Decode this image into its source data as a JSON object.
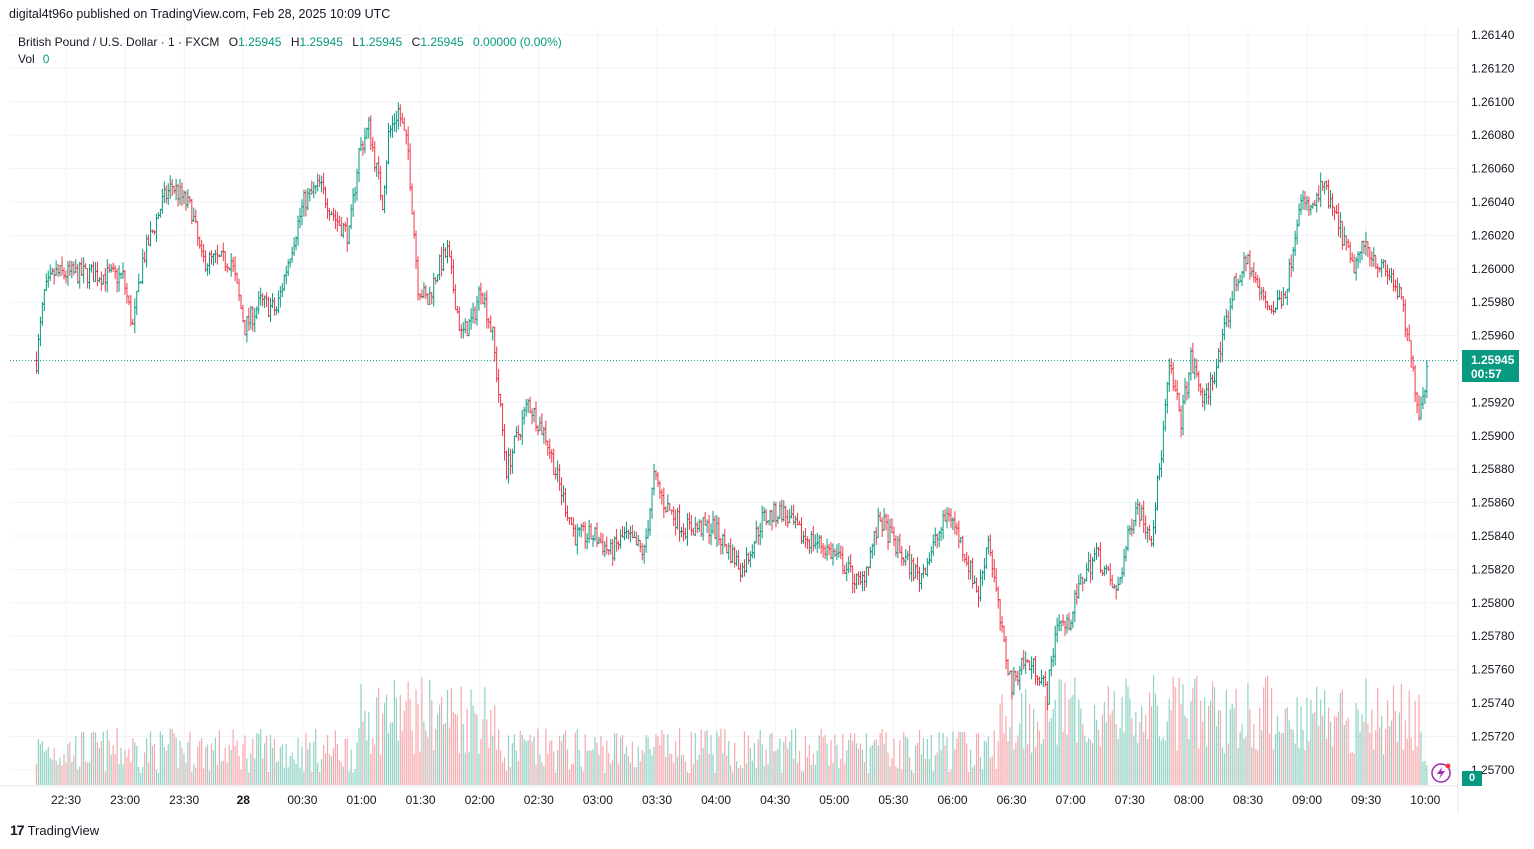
{
  "header": {
    "publisher": "digital4t96o published on TradingView.com, Feb 28, 2025 10:09 UTC"
  },
  "legend": {
    "symbol": "British Pound / U.S. Dollar · 1 · FXCM",
    "open_label": "O",
    "open": "1.25945",
    "high_label": "H",
    "high": "1.25945",
    "low_label": "L",
    "low": "1.25945",
    "close_label": "C",
    "close": "1.25945",
    "change": "0.00000 (0.00%)",
    "vol_label": "Vol",
    "vol_value": "0"
  },
  "price_tag": {
    "price": "1.25945",
    "countdown": "00:57"
  },
  "volume_badge": "0",
  "branding": {
    "logo_icon": "tradingview-logo-icon",
    "name": "TradingView"
  },
  "colors": {
    "up": "#089981",
    "down": "#f23645",
    "grid": "#f0f3fa",
    "text": "#131722"
  },
  "chart_data": {
    "type": "candlestick",
    "title": "British Pound / U.S. Dollar · 1 · FXCM",
    "interval": "1 minute",
    "y_ticks": [
      "1.26140",
      "1.26120",
      "1.26100",
      "1.26080",
      "1.26060",
      "1.26040",
      "1.26020",
      "1.26000",
      "1.25980",
      "1.25960",
      "1.25920",
      "1.25900",
      "1.25880",
      "1.25860",
      "1.25840",
      "1.25820",
      "1.25800",
      "1.25780",
      "1.25760",
      "1.25740",
      "1.25720",
      "1.25700"
    ],
    "x_ticks": [
      "22:30",
      "23:00",
      "23:30",
      "28",
      "00:30",
      "01:00",
      "01:30",
      "02:00",
      "02:30",
      "03:00",
      "03:30",
      "04:00",
      "04:30",
      "05:00",
      "05:30",
      "06:00",
      "06:30",
      "07:00",
      "07:30",
      "08:00",
      "08:30",
      "09:00",
      "09:30",
      "10:00"
    ],
    "ylim": [
      1.2569,
      1.2615
    ],
    "last_price": 1.25945,
    "price_path_keypoints": [
      {
        "time": "22:16",
        "price": 1.25945
      },
      {
        "time": "22:20",
        "price": 1.25985
      },
      {
        "time": "22:25",
        "price": 1.25997
      },
      {
        "time": "22:45",
        "price": 1.25997
      },
      {
        "time": "23:00",
        "price": 1.25995
      },
      {
        "time": "23:05",
        "price": 1.25965
      },
      {
        "time": "23:10",
        "price": 1.26005
      },
      {
        "time": "23:20",
        "price": 1.2604
      },
      {
        "time": "23:25",
        "price": 1.2605
      },
      {
        "time": "23:35",
        "price": 1.26035
      },
      {
        "time": "23:40",
        "price": 1.26005
      },
      {
        "time": "23:55",
        "price": 1.26005
      },
      {
        "time": "00:02",
        "price": 1.25965
      },
      {
        "time": "00:10",
        "price": 1.2598
      },
      {
        "time": "00:18",
        "price": 1.25975
      },
      {
        "time": "00:25",
        "price": 1.2601
      },
      {
        "time": "00:32",
        "price": 1.2604
      },
      {
        "time": "00:40",
        "price": 1.2605
      },
      {
        "time": "00:48",
        "price": 1.2603
      },
      {
        "time": "00:55",
        "price": 1.2602
      },
      {
        "time": "01:00",
        "price": 1.2607
      },
      {
        "time": "01:05",
        "price": 1.26085
      },
      {
        "time": "01:12",
        "price": 1.2604
      },
      {
        "time": "01:15",
        "price": 1.2608
      },
      {
        "time": "01:20",
        "price": 1.26095
      },
      {
        "time": "01:25",
        "price": 1.2607
      },
      {
        "time": "01:30",
        "price": 1.2599
      },
      {
        "time": "01:35",
        "price": 1.2598
      },
      {
        "time": "01:40",
        "price": 1.26
      },
      {
        "time": "01:45",
        "price": 1.2601
      },
      {
        "time": "01:52",
        "price": 1.2596
      },
      {
        "time": "01:58",
        "price": 1.2597
      },
      {
        "time": "02:02",
        "price": 1.2599
      },
      {
        "time": "02:08",
        "price": 1.2596
      },
      {
        "time": "02:15",
        "price": 1.2588
      },
      {
        "time": "02:22",
        "price": 1.25905
      },
      {
        "time": "02:26",
        "price": 1.2592
      },
      {
        "time": "02:35",
        "price": 1.259
      },
      {
        "time": "02:42",
        "price": 1.2587
      },
      {
        "time": "02:50",
        "price": 1.2584
      },
      {
        "time": "03:00",
        "price": 1.2584
      },
      {
        "time": "03:08",
        "price": 1.2583
      },
      {
        "time": "03:15",
        "price": 1.2584
      },
      {
        "time": "03:25",
        "price": 1.2583
      },
      {
        "time": "03:30",
        "price": 1.25875
      },
      {
        "time": "03:35",
        "price": 1.2586
      },
      {
        "time": "03:45",
        "price": 1.25845
      },
      {
        "time": "04:00",
        "price": 1.25845
      },
      {
        "time": "04:15",
        "price": 1.2582
      },
      {
        "time": "04:25",
        "price": 1.2585
      },
      {
        "time": "04:35",
        "price": 1.25855
      },
      {
        "time": "04:45",
        "price": 1.2584
      },
      {
        "time": "04:55",
        "price": 1.25835
      },
      {
        "time": "05:05",
        "price": 1.25825
      },
      {
        "time": "05:15",
        "price": 1.2581
      },
      {
        "time": "05:25",
        "price": 1.2585
      },
      {
        "time": "05:35",
        "price": 1.2583
      },
      {
        "time": "05:45",
        "price": 1.25815
      },
      {
        "time": "06:00",
        "price": 1.25855
      },
      {
        "time": "06:08",
        "price": 1.2583
      },
      {
        "time": "06:15",
        "price": 1.25805
      },
      {
        "time": "06:20",
        "price": 1.2584
      },
      {
        "time": "06:27",
        "price": 1.2578
      },
      {
        "time": "06:32",
        "price": 1.2575
      },
      {
        "time": "06:37",
        "price": 1.25765
      },
      {
        "time": "06:45",
        "price": 1.2576
      },
      {
        "time": "06:50",
        "price": 1.25745
      },
      {
        "time": "06:55",
        "price": 1.2579
      },
      {
        "time": "07:00",
        "price": 1.25785
      },
      {
        "time": "07:08",
        "price": 1.25815
      },
      {
        "time": "07:15",
        "price": 1.2583
      },
      {
        "time": "07:25",
        "price": 1.25805
      },
      {
        "time": "07:35",
        "price": 1.2586
      },
      {
        "time": "07:43",
        "price": 1.2584
      },
      {
        "time": "07:48",
        "price": 1.2589
      },
      {
        "time": "07:52",
        "price": 1.2594
      },
      {
        "time": "07:58",
        "price": 1.2591
      },
      {
        "time": "08:03",
        "price": 1.25945
      },
      {
        "time": "08:10",
        "price": 1.2592
      },
      {
        "time": "08:18",
        "price": 1.2595
      },
      {
        "time": "08:25",
        "price": 1.2599
      },
      {
        "time": "08:32",
        "price": 1.26005
      },
      {
        "time": "08:38",
        "price": 1.25985
      },
      {
        "time": "08:45",
        "price": 1.25975
      },
      {
        "time": "08:52",
        "price": 1.2599
      },
      {
        "time": "08:58",
        "price": 1.2604
      },
      {
        "time": "09:05",
        "price": 1.26035
      },
      {
        "time": "09:10",
        "price": 1.2605
      },
      {
        "time": "09:15",
        "price": 1.26035
      },
      {
        "time": "09:20",
        "price": 1.2602
      },
      {
        "time": "09:25",
        "price": 1.26
      },
      {
        "time": "09:32",
        "price": 1.26015
      },
      {
        "time": "09:40",
        "price": 1.26
      },
      {
        "time": "09:45",
        "price": 1.25995
      },
      {
        "time": "09:50",
        "price": 1.2598
      },
      {
        "time": "09:55",
        "price": 1.25945
      },
      {
        "time": "09:59",
        "price": 1.25915
      },
      {
        "time": "10:02",
        "price": 1.2593
      },
      {
        "time": "10:03",
        "price": 1.25945
      }
    ],
    "volume": {
      "label": "Vol",
      "last_value": 0
    },
    "grid": true,
    "legend_position": "top-left"
  }
}
